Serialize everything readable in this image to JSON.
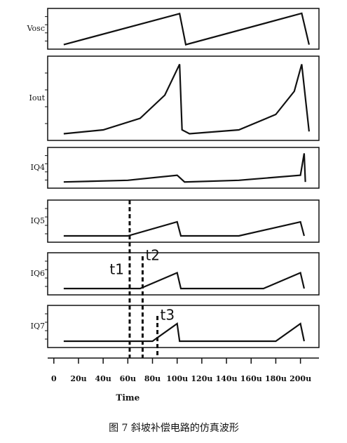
{
  "chart_data": [
    {
      "type": "line",
      "ylabel": "Vosc",
      "color": "#111",
      "xlim": [
        -5,
        215
      ],
      "ylim": [
        0,
        1
      ],
      "x": [
        8,
        102,
        107,
        201,
        207
      ],
      "values": [
        0.05,
        0.97,
        0.05,
        0.98,
        0.05
      ]
    },
    {
      "type": "line",
      "ylabel": "Iout",
      "color": "#111",
      "xlim": [
        -5,
        215
      ],
      "ylim": [
        0,
        1
      ],
      "x": [
        8,
        40,
        70,
        90,
        102,
        104,
        110,
        150,
        180,
        195,
        201,
        207
      ],
      "values": [
        0.05,
        0.1,
        0.25,
        0.55,
        0.95,
        0.1,
        0.05,
        0.1,
        0.3,
        0.6,
        0.95,
        0.08
      ]
    },
    {
      "type": "line",
      "ylabel": "IQ4",
      "color": "#111",
      "xlim": [
        -5,
        215
      ],
      "ylim": [
        0,
        1
      ],
      "x": [
        8,
        60,
        100,
        106,
        150,
        200,
        203,
        204
      ],
      "values": [
        0.1,
        0.15,
        0.3,
        0.1,
        0.15,
        0.3,
        0.95,
        0.1
      ]
    },
    {
      "type": "line",
      "ylabel": "IQ5",
      "color": "#111",
      "xlim": [
        -5,
        215
      ],
      "ylim": [
        0,
        1
      ],
      "x": [
        8,
        60,
        100,
        103,
        150,
        200,
        203
      ],
      "values": [
        0.1,
        0.1,
        0.5,
        0.1,
        0.1,
        0.5,
        0.1
      ]
    },
    {
      "type": "line",
      "ylabel": "IQ6",
      "color": "#111",
      "xlim": [
        -5,
        215
      ],
      "ylim": [
        0,
        1
      ],
      "x": [
        8,
        70,
        100,
        103,
        170,
        200,
        203
      ],
      "values": [
        0.1,
        0.1,
        0.55,
        0.1,
        0.1,
        0.55,
        0.1
      ]
    },
    {
      "type": "line",
      "ylabel": "IQ7",
      "color": "#111",
      "xlim": [
        -5,
        215
      ],
      "ylim": [
        0,
        1
      ],
      "x": [
        8,
        80,
        100,
        102,
        180,
        200,
        203
      ],
      "values": [
        0.1,
        0.1,
        0.6,
        0.1,
        0.1,
        0.6,
        0.1
      ],
      "xlabel": "Time",
      "xticks": [
        0,
        {
          "value": 20,
          "label": "20u"
        },
        {
          "value": 40,
          "label": "40u"
        },
        {
          "value": 60,
          "label": "60u"
        },
        {
          "value": 80,
          "label": "80u"
        },
        {
          "value": 100,
          "label": "100u"
        },
        {
          "value": 120,
          "label": "120u"
        },
        {
          "value": 140,
          "label": "140u"
        },
        {
          "value": 160,
          "label": "160u"
        },
        {
          "value": 180,
          "label": "180u"
        },
        {
          "value": 200,
          "label": "200u"
        }
      ]
    }
  ],
  "markers": [
    {
      "text": "t1",
      "x": 61.5
    },
    {
      "text": "t2",
      "x": 72
    },
    {
      "text": "t3",
      "x": 84
    }
  ],
  "caption": "图 7  斜坡补偿电路的仿真波形"
}
